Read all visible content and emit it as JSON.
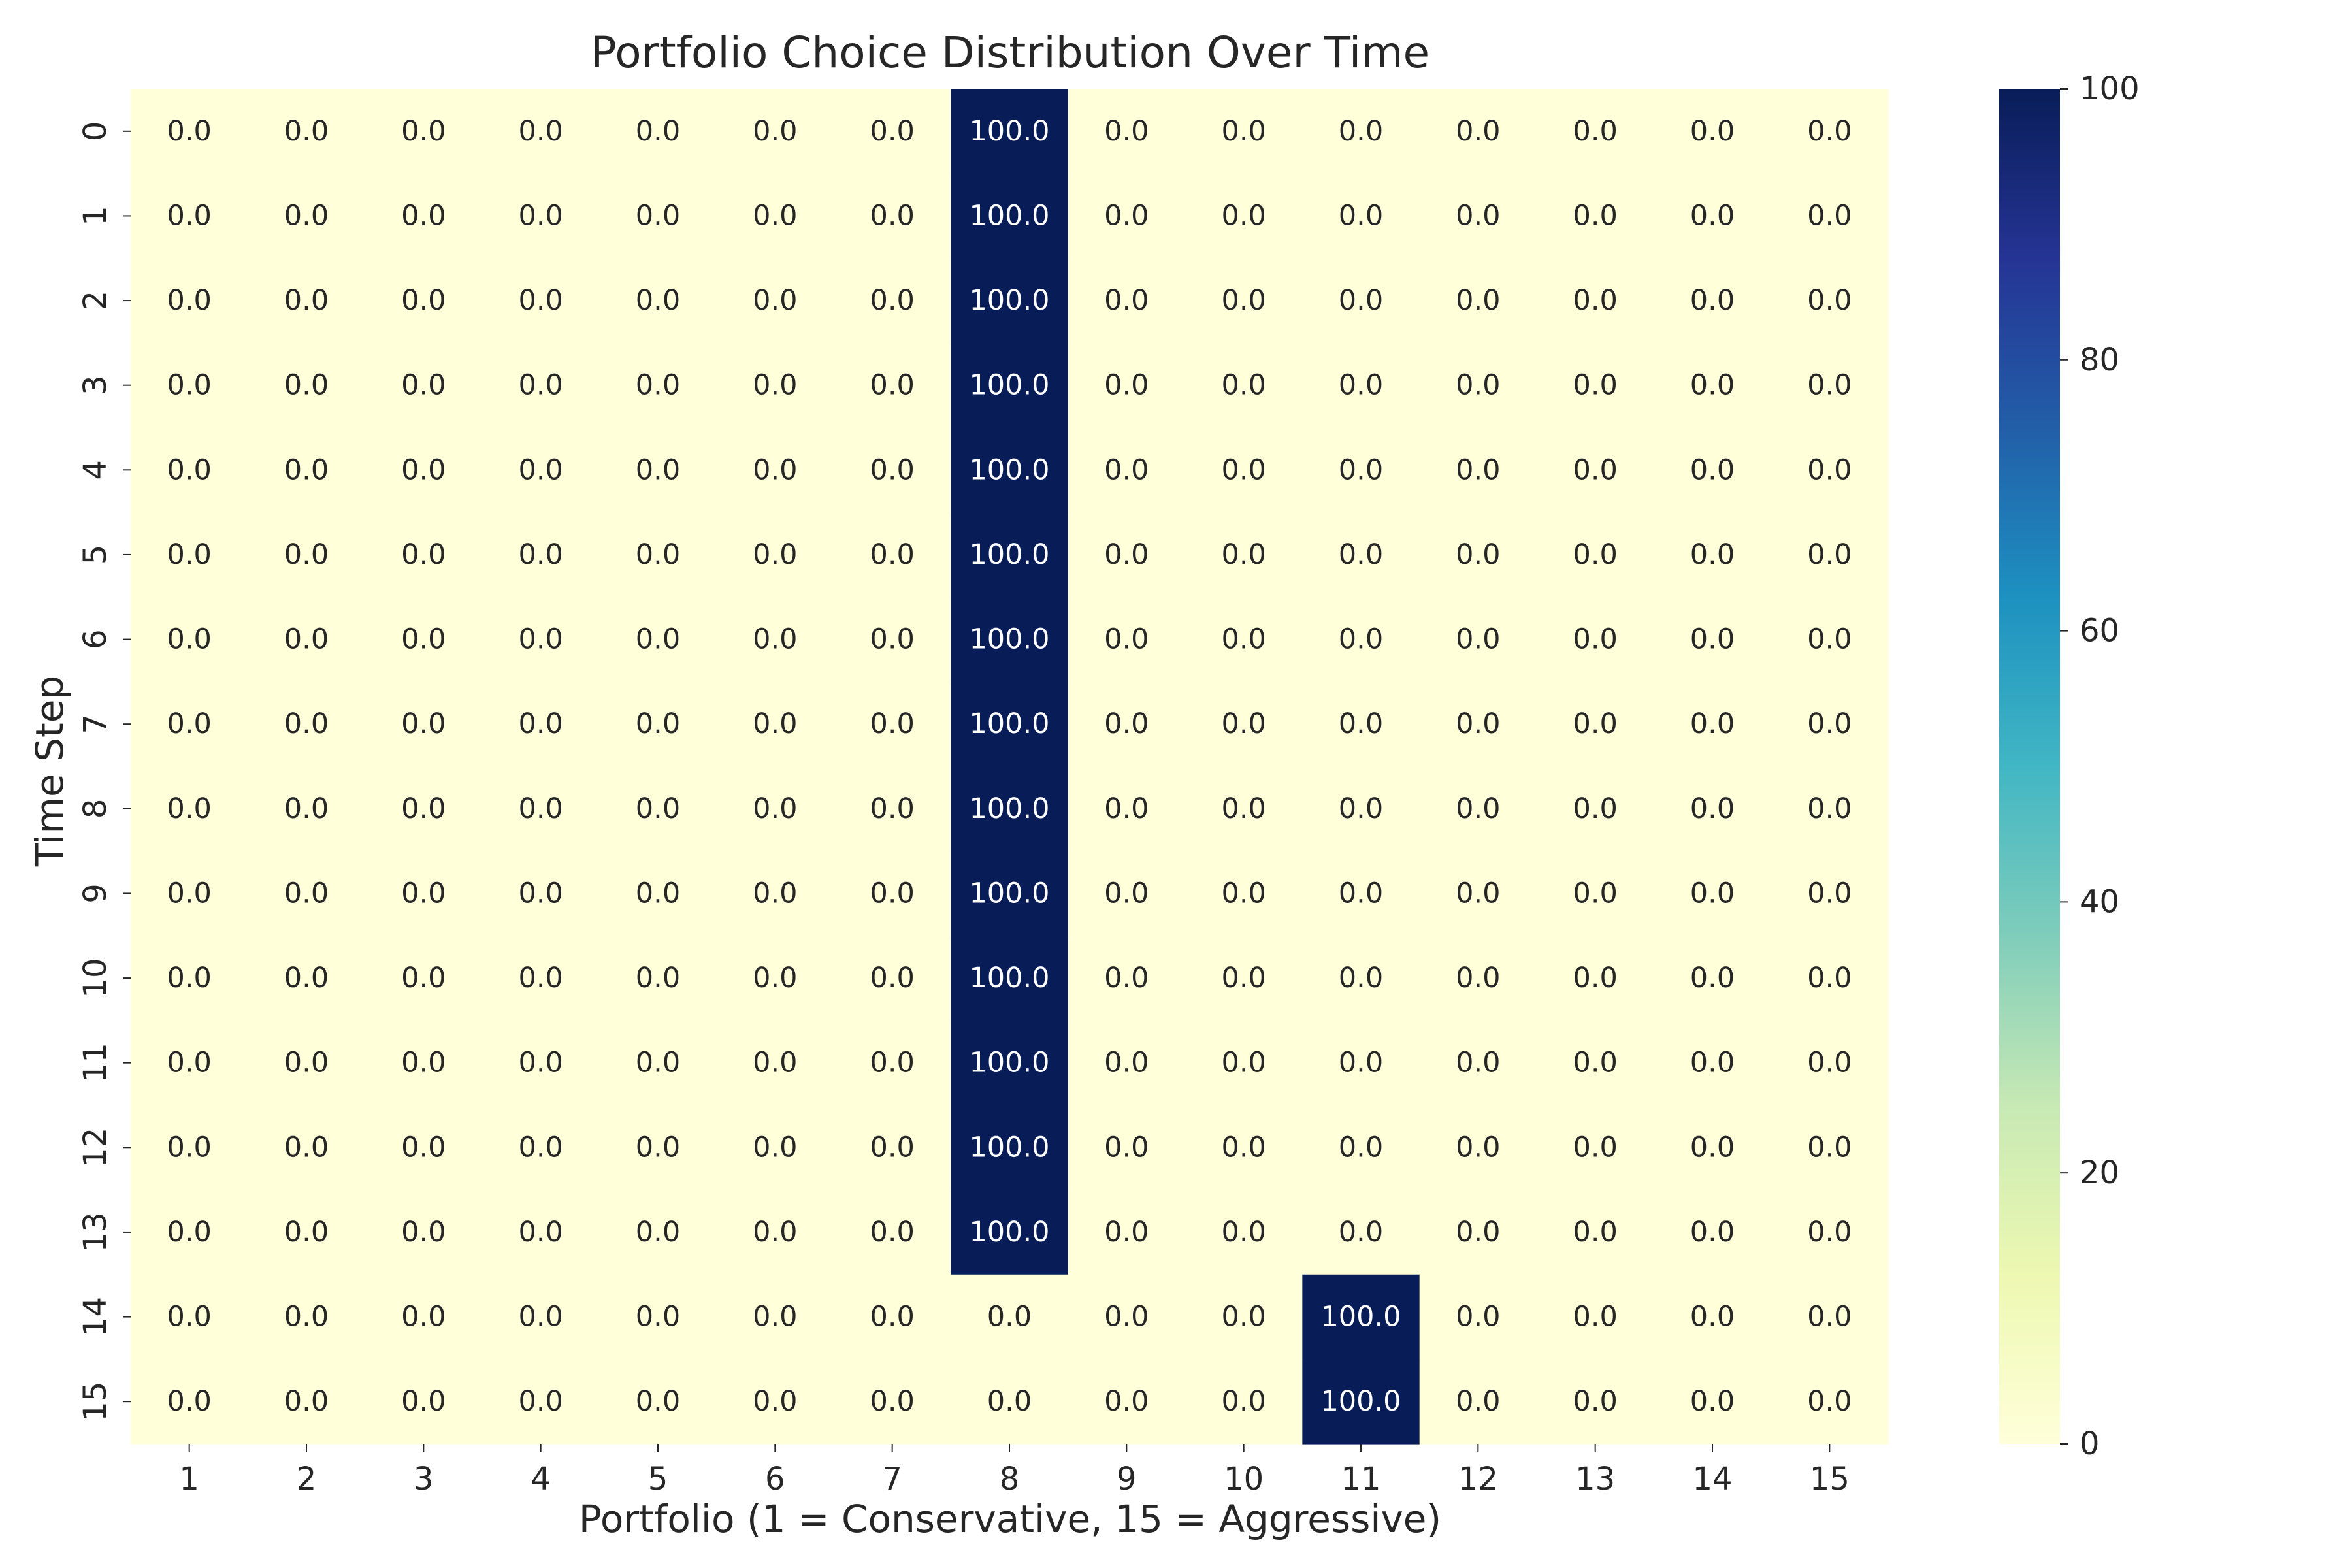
{
  "chart_data": {
    "type": "heatmap",
    "title": "Portfolio Choice Distribution Over Time",
    "xlabel": "Portfolio (1 = Conservative, 15 = Aggressive)",
    "ylabel": "Time Step",
    "x_categories": [
      "1",
      "2",
      "3",
      "4",
      "5",
      "6",
      "7",
      "8",
      "9",
      "10",
      "11",
      "12",
      "13",
      "14",
      "15"
    ],
    "y_categories": [
      "0",
      "1",
      "2",
      "3",
      "4",
      "5",
      "6",
      "7",
      "8",
      "9",
      "10",
      "11",
      "12",
      "13",
      "14",
      "15"
    ],
    "values": [
      [
        0,
        0,
        0,
        0,
        0,
        0,
        0,
        100,
        0,
        0,
        0,
        0,
        0,
        0,
        0
      ],
      [
        0,
        0,
        0,
        0,
        0,
        0,
        0,
        100,
        0,
        0,
        0,
        0,
        0,
        0,
        0
      ],
      [
        0,
        0,
        0,
        0,
        0,
        0,
        0,
        100,
        0,
        0,
        0,
        0,
        0,
        0,
        0
      ],
      [
        0,
        0,
        0,
        0,
        0,
        0,
        0,
        100,
        0,
        0,
        0,
        0,
        0,
        0,
        0
      ],
      [
        0,
        0,
        0,
        0,
        0,
        0,
        0,
        100,
        0,
        0,
        0,
        0,
        0,
        0,
        0
      ],
      [
        0,
        0,
        0,
        0,
        0,
        0,
        0,
        100,
        0,
        0,
        0,
        0,
        0,
        0,
        0
      ],
      [
        0,
        0,
        0,
        0,
        0,
        0,
        0,
        100,
        0,
        0,
        0,
        0,
        0,
        0,
        0
      ],
      [
        0,
        0,
        0,
        0,
        0,
        0,
        0,
        100,
        0,
        0,
        0,
        0,
        0,
        0,
        0
      ],
      [
        0,
        0,
        0,
        0,
        0,
        0,
        0,
        100,
        0,
        0,
        0,
        0,
        0,
        0,
        0
      ],
      [
        0,
        0,
        0,
        0,
        0,
        0,
        0,
        100,
        0,
        0,
        0,
        0,
        0,
        0,
        0
      ],
      [
        0,
        0,
        0,
        0,
        0,
        0,
        0,
        100,
        0,
        0,
        0,
        0,
        0,
        0,
        0
      ],
      [
        0,
        0,
        0,
        0,
        0,
        0,
        0,
        100,
        0,
        0,
        0,
        0,
        0,
        0,
        0
      ],
      [
        0,
        0,
        0,
        0,
        0,
        0,
        0,
        100,
        0,
        0,
        0,
        0,
        0,
        0,
        0
      ],
      [
        0,
        0,
        0,
        0,
        0,
        0,
        0,
        100,
        0,
        0,
        0,
        0,
        0,
        0,
        0
      ],
      [
        0,
        0,
        0,
        0,
        0,
        0,
        0,
        0,
        0,
        0,
        100,
        0,
        0,
        0,
        0
      ],
      [
        0,
        0,
        0,
        0,
        0,
        0,
        0,
        0,
        0,
        0,
        100,
        0,
        0,
        0,
        0
      ]
    ],
    "value_format": "0.0",
    "colorbar": {
      "colormap": "YlGnBu",
      "range": [
        0,
        100
      ],
      "ticks": [
        "0",
        "20",
        "40",
        "60",
        "80",
        "100"
      ]
    },
    "grid": false,
    "colors": {
      "low": "#ffffd9",
      "high": "#081d58"
    }
  }
}
